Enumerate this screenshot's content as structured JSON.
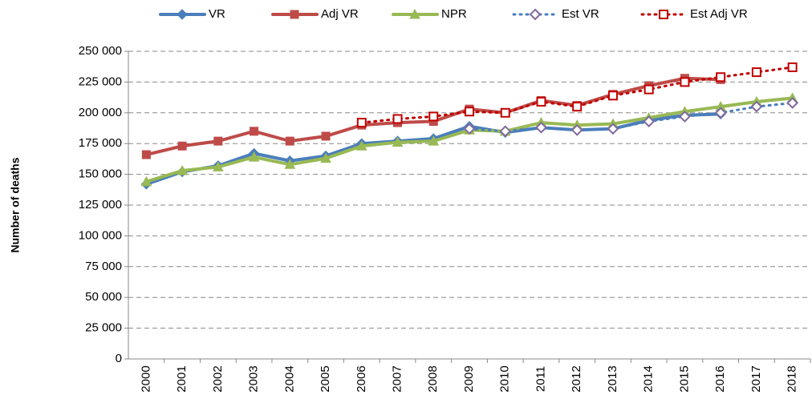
{
  "chart_data": {
    "type": "line",
    "y_label": "Number of deaths",
    "categories": [
      "2000",
      "2001",
      "2002",
      "2003",
      "2004",
      "2005",
      "2006",
      "2007",
      "2008",
      "2009",
      "2010",
      "2011",
      "2012",
      "2013",
      "2014",
      "2015",
      "2016",
      "2017",
      "2018"
    ],
    "ylim": [
      0,
      250000
    ],
    "yticks": [
      0,
      {
        "value": 25000,
        "label": "25 000"
      },
      {
        "value": 50000,
        "label": "50 000"
      },
      {
        "value": 75000,
        "label": "75 000"
      },
      {
        "value": 100000,
        "label": "100 000"
      },
      {
        "value": 125000,
        "label": "125 000"
      },
      {
        "value": 150000,
        "label": "150 000"
      },
      {
        "value": 175000,
        "label": "175 000"
      },
      {
        "value": 200000,
        "label": "200 000"
      },
      {
        "value": 225000,
        "label": "225 000"
      },
      {
        "value": 250000,
        "label": "250 000"
      }
    ],
    "grid": true,
    "legend": "top",
    "series": [
      {
        "name": "VR",
        "color": "#4a7ebb",
        "marker": "diamond",
        "values": [
          142000,
          152000,
          157000,
          167000,
          161000,
          165000,
          175000,
          177000,
          179000,
          189000,
          184000,
          188000,
          186000,
          187000,
          194000,
          198000,
          199000,
          null,
          null
        ]
      },
      {
        "name": "Adj VR",
        "color": "#be4b48",
        "marker": "square",
        "values": [
          166000,
          173000,
          177000,
          185000,
          177000,
          181000,
          190000,
          192000,
          193000,
          203000,
          200000,
          210000,
          206000,
          215000,
          222000,
          228000,
          227000,
          null,
          null
        ]
      },
      {
        "name": "NPR",
        "color": "#98b954",
        "marker": "triangle",
        "values": [
          144000,
          153000,
          156000,
          164000,
          158000,
          163000,
          173000,
          176000,
          177000,
          186000,
          185000,
          192000,
          190000,
          191000,
          196000,
          201000,
          205000,
          209000,
          212000
        ]
      },
      {
        "name": "Est VR",
        "color": "#4a7ebb",
        "marker_color": "#7f6a9e",
        "marker": "diamond",
        "dotted": true,
        "hollow": true,
        "values": [
          null,
          null,
          null,
          null,
          null,
          null,
          null,
          null,
          null,
          187000,
          185000,
          188000,
          186000,
          187000,
          193000,
          197000,
          200000,
          205000,
          208000
        ]
      },
      {
        "name": "Est Adj VR",
        "color": "#c00000",
        "marker_color": "#c00000",
        "marker": "square",
        "dotted": true,
        "hollow": true,
        "values": [
          null,
          null,
          null,
          null,
          null,
          null,
          192000,
          195000,
          197000,
          201000,
          200000,
          209000,
          205000,
          214000,
          219000,
          225000,
          229000,
          233000,
          237000
        ]
      }
    ]
  }
}
